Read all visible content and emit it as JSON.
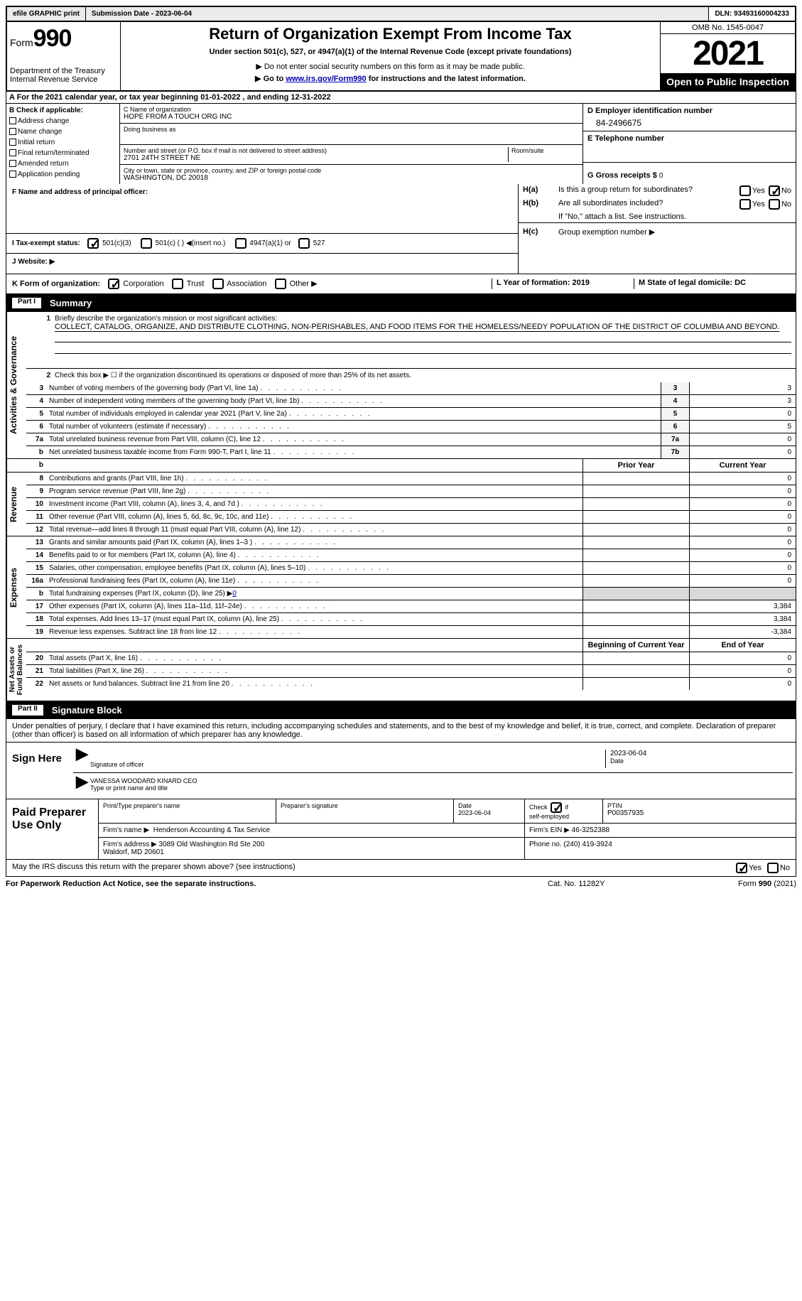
{
  "topbar": {
    "efile_btn": "efile GRAPHIC print",
    "sub_date_label": "Submission Date - ",
    "sub_date": "2023-06-04",
    "dln_label": "DLN: ",
    "dln": "93493160004233"
  },
  "header": {
    "form_label": "Form",
    "form_num": "990",
    "dept": "Department of the Treasury\nInternal Revenue Service",
    "title": "Return of Organization Exempt From Income Tax",
    "subtitle": "Under section 501(c), 527, or 4947(a)(1) of the Internal Revenue Code (except private foundations)",
    "arrow1": "▶ Do not enter social security numbers on this form as it may be made public.",
    "arrow2_pre": "▶ Go to ",
    "arrow2_link": "www.irs.gov/Form990",
    "arrow2_post": " for instructions and the latest information.",
    "omb": "OMB No. 1545-0047",
    "year": "2021",
    "open": "Open to Public Inspection"
  },
  "row_a": "A For the 2021 calendar year, or tax year beginning 01-01-2022    , and ending 12-31-2022",
  "col_b": {
    "label": "B Check if applicable:",
    "items": [
      "Address change",
      "Name change",
      "Initial return",
      "Final return/terminated",
      "Amended return",
      "Application pending"
    ]
  },
  "col_c": {
    "name_label": "C Name of organization",
    "name": "HOPE FROM A TOUCH ORG INC",
    "dba_label": "Doing business as",
    "dba": "",
    "addr_label": "Number and street (or P.O. box if mail is not delivered to street address)",
    "room_label": "Room/suite",
    "addr": "2701 24TH STREET NE",
    "city_label": "City or town, state or province, country, and ZIP or foreign postal code",
    "city": "WASHINGTON, DC  20018"
  },
  "col_de": {
    "d_label": "D Employer identification number",
    "d_val": "84-2496675",
    "e_label": "E Telephone number",
    "e_val": "",
    "g_label": "G Gross receipts $ ",
    "g_val": "0"
  },
  "f_row": {
    "label": "F Name and address of principal officer:"
  },
  "h_rows": {
    "ha": "Is this a group return for subordinates?",
    "hb": "Are all subordinates included?",
    "hb_note": "If \"No,\" attach a list. See instructions.",
    "hc": "Group exemption number ▶"
  },
  "i_row": {
    "label": "I   Tax-exempt status:",
    "opts": [
      "501(c)(3)",
      "501(c) (  ) ◀(insert no.)",
      "4947(a)(1) or",
      "527"
    ]
  },
  "j_row": "J   Website: ▶",
  "k_row": {
    "label": "K Form of organization:",
    "opts": [
      "Corporation",
      "Trust",
      "Association",
      "Other ▶"
    ],
    "l": "L Year of formation: 2019",
    "m": "M State of legal domicile: DC"
  },
  "part1": {
    "num": "Part I",
    "title": "Summary"
  },
  "section_activities": {
    "label": "Activities & Governance",
    "line1_label": "Briefly describe the organization's mission or most significant activities:",
    "mission": "COLLECT, CATALOG, ORGANIZE, AND DISTRIBUTE CLOTHING, NON-PERISHABLES, AND FOOD ITEMS FOR THE HOMELESS/NEEDY POPULATION OF THE DISTRICT OF COLUMBIA AND BEYOND.",
    "line2": "Check this box ▶ ☐ if the organization discontinued its operations or disposed of more than 25% of its net assets.",
    "rows": [
      {
        "n": "3",
        "d": "Number of voting members of the governing body (Part VI, line 1a)",
        "box": "3",
        "v": "3"
      },
      {
        "n": "4",
        "d": "Number of independent voting members of the governing body (Part VI, line 1b)",
        "box": "4",
        "v": "3"
      },
      {
        "n": "5",
        "d": "Total number of individuals employed in calendar year 2021 (Part V, line 2a)",
        "box": "5",
        "v": "0"
      },
      {
        "n": "6",
        "d": "Total number of volunteers (estimate if necessary)",
        "box": "6",
        "v": "5"
      },
      {
        "n": "7a",
        "d": "Total unrelated business revenue from Part VIII, column (C), line 12",
        "box": "7a",
        "v": "0"
      },
      {
        "n": "b",
        "d": "Net unrelated business taxable income from Form 990-T, Part I, line 11",
        "box": "7b",
        "v": "0"
      }
    ]
  },
  "col_headers": {
    "prior": "Prior Year",
    "current": "Current Year"
  },
  "section_revenue": {
    "label": "Revenue",
    "rows": [
      {
        "n": "8",
        "d": "Contributions and grants (Part VIII, line 1h)",
        "p": "",
        "c": "0"
      },
      {
        "n": "9",
        "d": "Program service revenue (Part VIII, line 2g)",
        "p": "",
        "c": "0"
      },
      {
        "n": "10",
        "d": "Investment income (Part VIII, column (A), lines 3, 4, and 7d )",
        "p": "",
        "c": "0"
      },
      {
        "n": "11",
        "d": "Other revenue (Part VIII, column (A), lines 5, 6d, 8c, 9c, 10c, and 11e)",
        "p": "",
        "c": "0"
      },
      {
        "n": "12",
        "d": "Total revenue—add lines 8 through 11 (must equal Part VIII, column (A), line 12)",
        "p": "",
        "c": "0"
      }
    ]
  },
  "section_expenses": {
    "label": "Expenses",
    "rows": [
      {
        "n": "13",
        "d": "Grants and similar amounts paid (Part IX, column (A), lines 1–3 )",
        "p": "",
        "c": "0"
      },
      {
        "n": "14",
        "d": "Benefits paid to or for members (Part IX, column (A), line 4)",
        "p": "",
        "c": "0"
      },
      {
        "n": "15",
        "d": "Salaries, other compensation, employee benefits (Part IX, column (A), lines 5–10)",
        "p": "",
        "c": "0"
      },
      {
        "n": "16a",
        "d": "Professional fundraising fees (Part IX, column (A), line 11e)",
        "p": "",
        "c": "0"
      }
    ],
    "line_b": "Total fundraising expenses (Part IX, column (D), line 25) ▶",
    "line_b_val": "0",
    "rows2": [
      {
        "n": "17",
        "d": "Other expenses (Part IX, column (A), lines 11a–11d, 11f–24e)",
        "p": "",
        "c": "3,384"
      },
      {
        "n": "18",
        "d": "Total expenses. Add lines 13–17 (must equal Part IX, column (A), line 25)",
        "p": "",
        "c": "3,384"
      },
      {
        "n": "19",
        "d": "Revenue less expenses. Subtract line 18 from line 12",
        "p": "",
        "c": "-3,384"
      }
    ]
  },
  "section_net": {
    "label": "Net Assets or\nFund Balances",
    "headers": {
      "b": "Beginning of Current Year",
      "e": "End of Year"
    },
    "rows": [
      {
        "n": "20",
        "d": "Total assets (Part X, line 16)",
        "p": "",
        "c": "0"
      },
      {
        "n": "21",
        "d": "Total liabilities (Part X, line 26)",
        "p": "",
        "c": "0"
      },
      {
        "n": "22",
        "d": "Net assets or fund balances. Subtract line 21 from line 20",
        "p": "",
        "c": "0"
      }
    ]
  },
  "part2": {
    "num": "Part II",
    "title": "Signature Block"
  },
  "sig_text": "Under penalties of perjury, I declare that I have examined this return, including accompanying schedules and statements, and to the best of my knowledge and belief, it is true, correct, and complete. Declaration of preparer (other than officer) is based on all information of which preparer has any knowledge.",
  "sign_here": "Sign Here",
  "sig_officer_label": "Signature of officer",
  "sig_date": "2023-06-04",
  "sig_date_label": "Date",
  "sig_name": "VANESSA WOODARD KINARD CEO",
  "sig_name_label": "Type or print name and title",
  "paid_label": "Paid Preparer Use Only",
  "paid": {
    "print_label": "Print/Type preparer's name",
    "sig_label": "Preparer's signature",
    "date_label": "Date",
    "date": "2023-06-04",
    "check_label": "Check ☑ if self-employed",
    "ptin_label": "PTIN",
    "ptin": "P00357935",
    "firm_name_label": "Firm's name   ▶",
    "firm_name": "Henderson Accounting & Tax Service",
    "firm_ein_label": "Firm's EIN ▶",
    "firm_ein": "46-3252388",
    "firm_addr_label": "Firm's address ▶",
    "firm_addr": "3089 Old Washington Rd Ste 200\nWaldorf, MD  20601",
    "phone_label": "Phone no.",
    "phone": "(240) 419-3924"
  },
  "discuss": "May the IRS discuss this return with the preparer shown above? (see instructions)",
  "footer": {
    "left": "For Paperwork Reduction Act Notice, see the separate instructions.",
    "mid": "Cat. No. 11282Y",
    "right": "Form 990 (2021)"
  }
}
